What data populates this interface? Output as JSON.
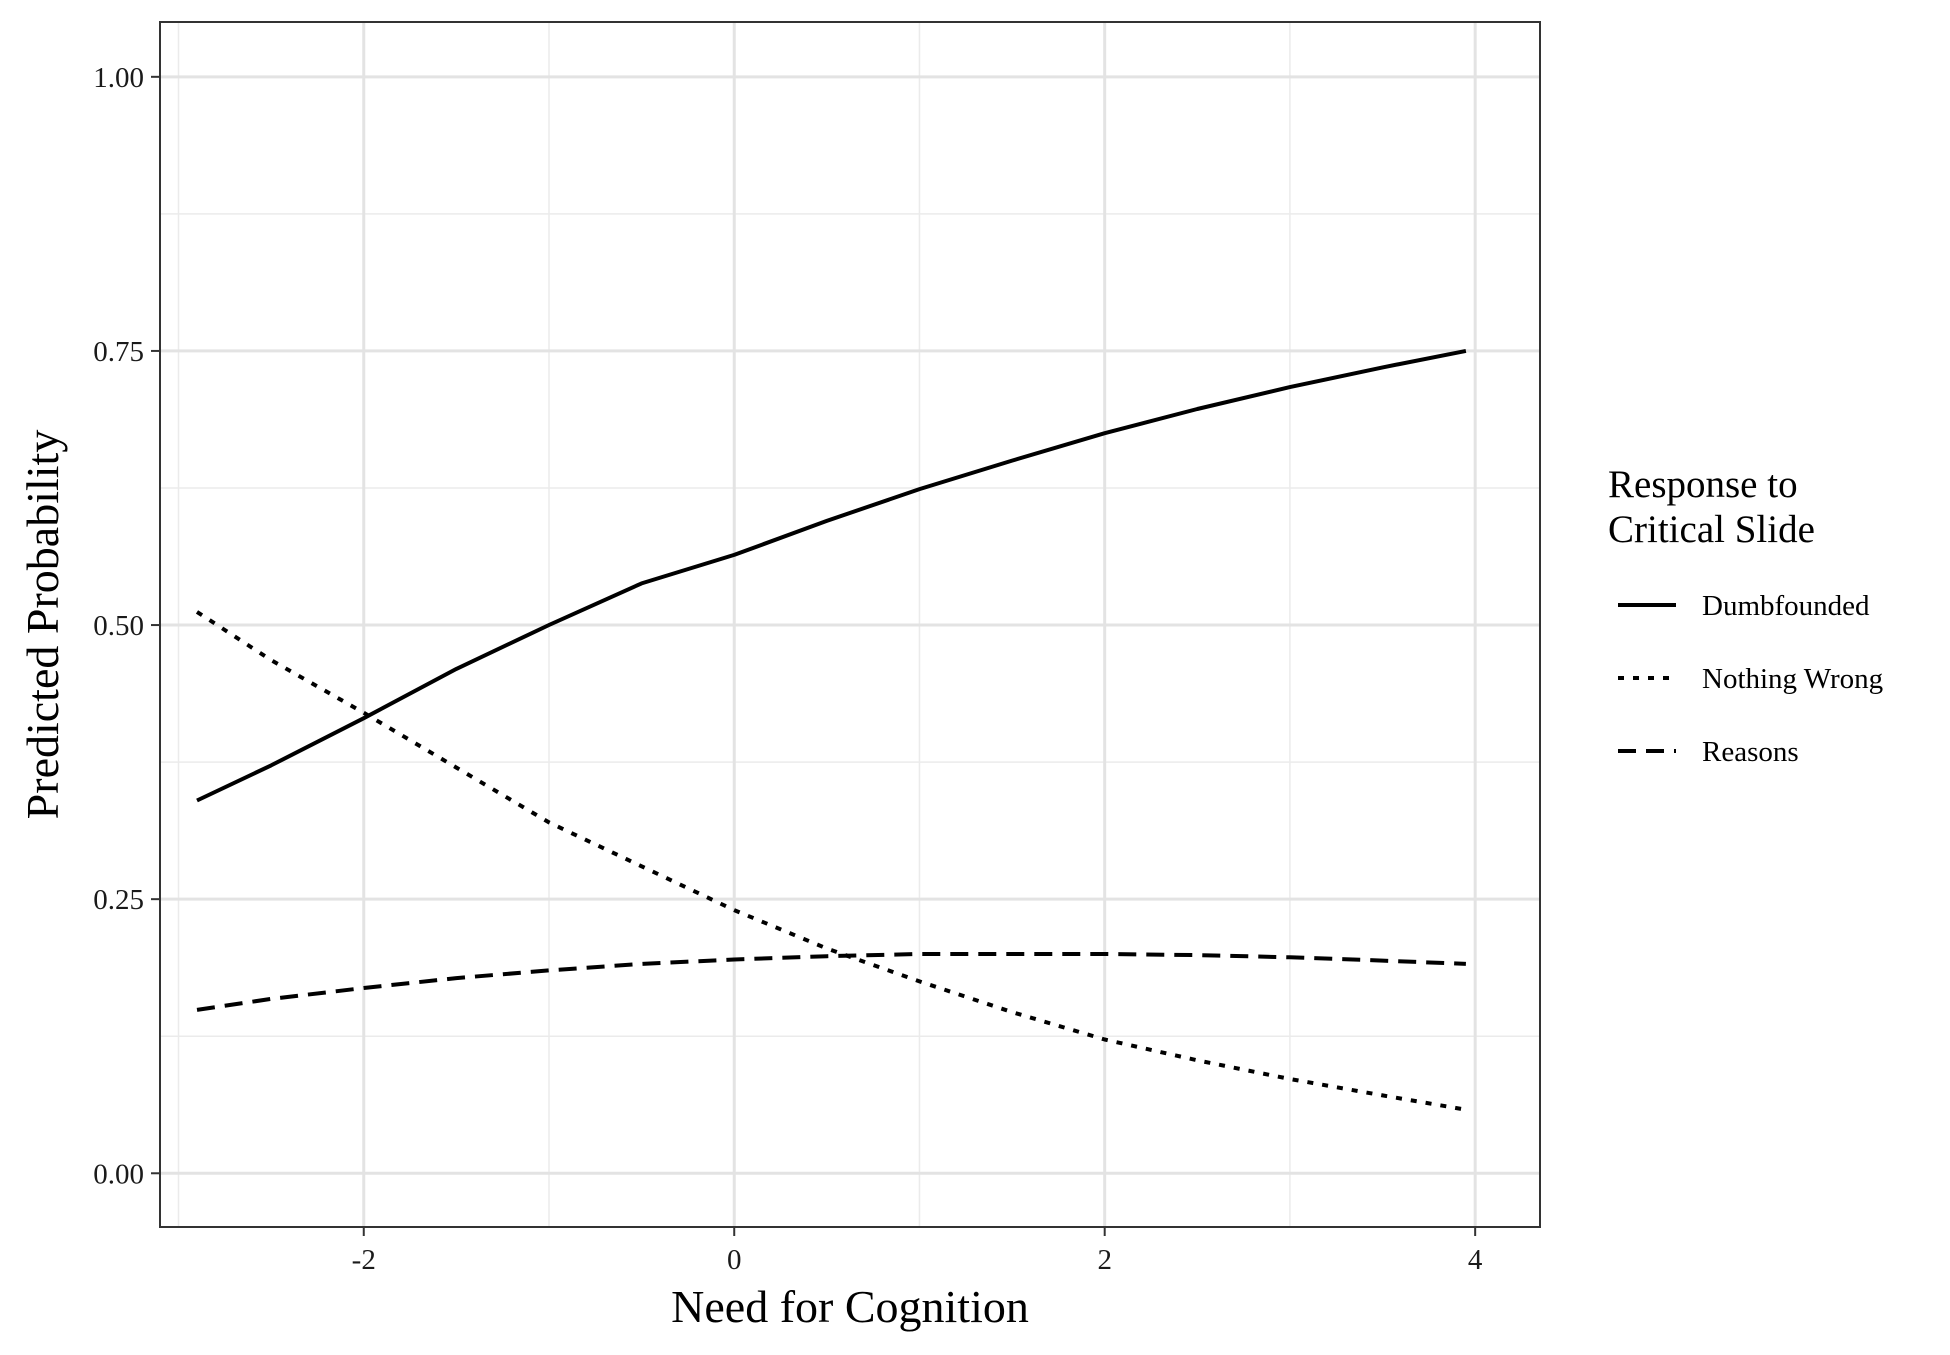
{
  "chart_data": {
    "type": "line",
    "title": "",
    "xlabel": "Need for Cognition",
    "ylabel": "Predicted Probability",
    "xlim": [
      -3.1,
      4.35
    ],
    "ylim": [
      -0.049,
      1.05
    ],
    "x_ticks": [
      -2,
      0,
      2,
      4
    ],
    "x_tick_labels": [
      "-2",
      "0",
      "2",
      "4"
    ],
    "y_ticks": [
      0,
      0.25,
      0.5,
      0.75,
      1.0
    ],
    "y_tick_labels": [
      "0.00",
      "0.25",
      "0.50",
      "0.75",
      "1.00"
    ],
    "grid": true,
    "legend": {
      "title_lines": [
        "Response to",
        "Critical Slide"
      ],
      "placement": "right"
    },
    "series": [
      {
        "name": "Dumbfounded",
        "linestyle": "solid",
        "color": "#000000",
        "x": [
          -2.9,
          -2.5,
          -2,
          -1.5,
          -1,
          -0.5,
          0,
          0.5,
          1,
          1.5,
          2,
          2.5,
          3,
          3.5,
          3.95
        ],
        "y": [
          0.34,
          0.372,
          0.415,
          0.46,
          0.5,
          0.538,
          0.564,
          0.595,
          0.624,
          0.65,
          0.675,
          0.697,
          0.717,
          0.735,
          0.75
        ]
      },
      {
        "name": "Nothing Wrong",
        "linestyle": "dotted",
        "color": "#000000",
        "x": [
          -2.9,
          -2.5,
          -2,
          -1.5,
          -1,
          -0.5,
          0,
          0.5,
          1,
          1.5,
          2,
          2.5,
          3,
          3.5,
          3.95
        ],
        "y": [
          0.512,
          0.468,
          0.42,
          0.37,
          0.32,
          0.28,
          0.24,
          0.205,
          0.175,
          0.147,
          0.122,
          0.103,
          0.086,
          0.071,
          0.058
        ]
      },
      {
        "name": "Reasons",
        "linestyle": "dashed",
        "color": "#000000",
        "x": [
          -2.9,
          -2.5,
          -2,
          -1.5,
          -1,
          -0.5,
          0,
          0.5,
          1,
          1.5,
          2,
          2.5,
          3,
          3.5,
          3.95
        ],
        "y": [
          0.149,
          0.159,
          0.169,
          0.178,
          0.185,
          0.191,
          0.195,
          0.198,
          0.2,
          0.2,
          0.2,
          0.199,
          0.197,
          0.194,
          0.191
        ]
      }
    ]
  }
}
